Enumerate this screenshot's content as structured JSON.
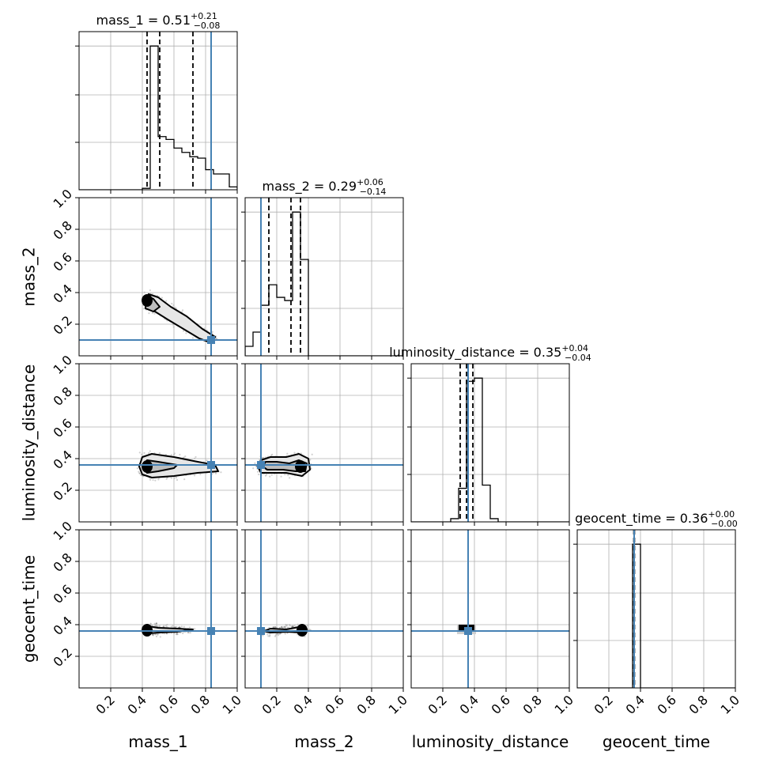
{
  "chart_data": {
    "type": "corner",
    "parameters": [
      "mass_1",
      "mass_2",
      "luminosity_distance",
      "geocent_time"
    ],
    "injection": {
      "mass_1": 0.835,
      "mass_2": 0.1,
      "luminosity_distance": 0.36,
      "geocent_time": 0.36
    },
    "truth_color": "#4682b4",
    "axis_range": [
      0.0,
      1.0
    ],
    "tick_values": [
      0.2,
      0.4,
      0.6,
      0.8,
      1.0
    ],
    "tick_labels": [
      "0.2",
      "0.4",
      "0.6",
      "0.8",
      "1.0"
    ],
    "grid": true,
    "summaries": [
      {
        "param": "mass_1",
        "name": "mass_1",
        "median": "0.51",
        "plus": "+0.21",
        "minus": "−0.08",
        "quantiles": [
          0.43,
          0.51,
          0.72
        ]
      },
      {
        "param": "mass_2",
        "name": "mass_2",
        "median": "0.29",
        "plus": "+0.06",
        "minus": "−0.14",
        "quantiles": [
          0.15,
          0.29,
          0.35
        ]
      },
      {
        "param": "luminosity_distance",
        "name": "luminosity_distance",
        "median": "0.35",
        "plus": "+0.04",
        "minus": "−0.04",
        "quantiles": [
          0.31,
          0.35,
          0.39
        ]
      },
      {
        "param": "geocent_time",
        "name": "geocent_time",
        "median": "0.36",
        "plus": "+0.00",
        "minus": "−0.00",
        "quantiles": [
          0.358,
          0.36,
          0.362
        ]
      }
    ],
    "histograms": {
      "mass_1": {
        "edges": [
          0.0,
          0.05,
          0.1,
          0.15,
          0.2,
          0.25,
          0.3,
          0.35,
          0.4,
          0.45,
          0.5,
          0.55,
          0.6,
          0.65,
          0.7,
          0.75,
          0.8,
          0.85,
          0.9,
          0.95,
          1.0
        ],
        "counts": [
          0,
          0,
          0,
          0,
          0,
          0,
          0,
          0,
          0.01,
          1.0,
          0.37,
          0.35,
          0.29,
          0.26,
          0.23,
          0.22,
          0.14,
          0.11,
          0.11,
          0.02
        ]
      },
      "mass_2": {
        "edges": [
          0.0,
          0.05,
          0.1,
          0.15,
          0.2,
          0.25,
          0.3,
          0.35,
          0.4,
          0.45,
          0.5,
          0.55,
          0.6,
          0.65,
          0.7,
          0.75,
          0.8,
          0.85,
          0.9,
          0.95,
          1.0
        ],
        "counts": [
          0.06,
          0.15,
          0.32,
          0.45,
          0.37,
          0.35,
          0.91,
          0.61,
          0,
          0,
          0,
          0,
          0,
          0,
          0,
          0,
          0,
          0,
          0,
          0
        ]
      },
      "luminosity_distance": {
        "edges": [
          0.0,
          0.05,
          0.1,
          0.15,
          0.2,
          0.25,
          0.3,
          0.35,
          0.4,
          0.45,
          0.5,
          0.55,
          0.6,
          0.65,
          0.7,
          0.75,
          0.8,
          0.85,
          0.9,
          0.95,
          1.0
        ],
        "counts": [
          0,
          0,
          0,
          0,
          0,
          0.02,
          0.21,
          0.88,
          0.9,
          0.23,
          0.02,
          0,
          0,
          0,
          0,
          0,
          0,
          0,
          0,
          0
        ]
      },
      "geocent_time": {
        "edges": [
          0.0,
          0.05,
          0.1,
          0.15,
          0.2,
          0.25,
          0.3,
          0.35,
          0.4,
          0.45,
          0.5,
          0.55,
          0.6,
          0.65,
          0.7,
          0.75,
          0.8,
          0.85,
          0.9,
          0.95,
          1.0
        ],
        "counts": [
          0,
          0,
          0,
          0,
          0,
          0,
          0,
          1.0,
          0,
          0,
          0,
          0,
          0,
          0,
          0,
          0,
          0,
          0,
          0,
          0
        ]
      }
    },
    "pairs": [
      {
        "x": "mass_1",
        "y": "mass_2",
        "contours": [
          [
            [
              0.42,
              0.35
            ],
            [
              0.44,
              0.39
            ],
            [
              0.5,
              0.37
            ],
            [
              0.58,
              0.31
            ],
            [
              0.68,
              0.25
            ],
            [
              0.78,
              0.17
            ],
            [
              0.86,
              0.12
            ],
            [
              0.84,
              0.08
            ],
            [
              0.76,
              0.11
            ],
            [
              0.66,
              0.17
            ],
            [
              0.56,
              0.23
            ],
            [
              0.48,
              0.28
            ],
            [
              0.42,
              0.3
            ]
          ],
          [
            [
              0.42,
              0.35
            ],
            [
              0.43,
              0.38
            ],
            [
              0.47,
              0.36
            ],
            [
              0.51,
              0.31
            ],
            [
              0.47,
              0.28
            ],
            [
              0.42,
              0.3
            ]
          ]
        ],
        "core": [
          0.43,
          0.35
        ]
      },
      {
        "x": "mass_1",
        "y": "luminosity_distance",
        "contours": [
          [
            [
              0.38,
              0.35
            ],
            [
              0.4,
              0.41
            ],
            [
              0.46,
              0.43
            ],
            [
              0.6,
              0.41
            ],
            [
              0.75,
              0.38
            ],
            [
              0.86,
              0.36
            ],
            [
              0.88,
              0.32
            ],
            [
              0.75,
              0.31
            ],
            [
              0.6,
              0.29
            ],
            [
              0.46,
              0.28
            ],
            [
              0.4,
              0.3
            ]
          ],
          [
            [
              0.41,
              0.35
            ],
            [
              0.43,
              0.39
            ],
            [
              0.5,
              0.38
            ],
            [
              0.62,
              0.36
            ],
            [
              0.6,
              0.34
            ],
            [
              0.5,
              0.32
            ],
            [
              0.43,
              0.31
            ]
          ]
        ],
        "core": [
          0.43,
          0.35
        ]
      },
      {
        "x": "mass_2",
        "y": "luminosity_distance",
        "contours": [
          [
            [
              0.08,
              0.35
            ],
            [
              0.1,
              0.39
            ],
            [
              0.16,
              0.41
            ],
            [
              0.26,
              0.41
            ],
            [
              0.34,
              0.43
            ],
            [
              0.4,
              0.4
            ],
            [
              0.41,
              0.33
            ],
            [
              0.36,
              0.29
            ],
            [
              0.26,
              0.31
            ],
            [
              0.16,
              0.31
            ],
            [
              0.1,
              0.31
            ]
          ],
          [
            [
              0.11,
              0.35
            ],
            [
              0.13,
              0.38
            ],
            [
              0.2,
              0.38
            ],
            [
              0.28,
              0.37
            ],
            [
              0.34,
              0.39
            ],
            [
              0.39,
              0.37
            ],
            [
              0.38,
              0.32
            ],
            [
              0.32,
              0.32
            ],
            [
              0.24,
              0.33
            ],
            [
              0.14,
              0.33
            ]
          ]
        ],
        "core": [
          0.35,
          0.35
        ]
      },
      {
        "x": "mass_1",
        "y": "geocent_time",
        "contours": [
          [
            [
              0.42,
              0.365
            ],
            [
              0.44,
              0.39
            ],
            [
              0.5,
              0.38
            ],
            [
              0.62,
              0.375
            ],
            [
              0.72,
              0.37
            ],
            [
              0.62,
              0.355
            ],
            [
              0.5,
              0.35
            ],
            [
              0.44,
              0.345
            ]
          ]
        ],
        "core": [
          0.43,
          0.365
        ]
      },
      {
        "x": "mass_2",
        "y": "geocent_time",
        "contours": [
          [
            [
              0.12,
              0.36
            ],
            [
              0.16,
              0.375
            ],
            [
              0.26,
              0.37
            ],
            [
              0.34,
              0.385
            ],
            [
              0.39,
              0.37
            ],
            [
              0.36,
              0.35
            ],
            [
              0.26,
              0.355
            ],
            [
              0.16,
              0.35
            ]
          ]
        ],
        "core": [
          0.36,
          0.365
        ]
      },
      {
        "x": "luminosity_distance",
        "y": "geocent_time",
        "contours": [],
        "core": [
          0.35,
          0.365
        ]
      }
    ]
  }
}
